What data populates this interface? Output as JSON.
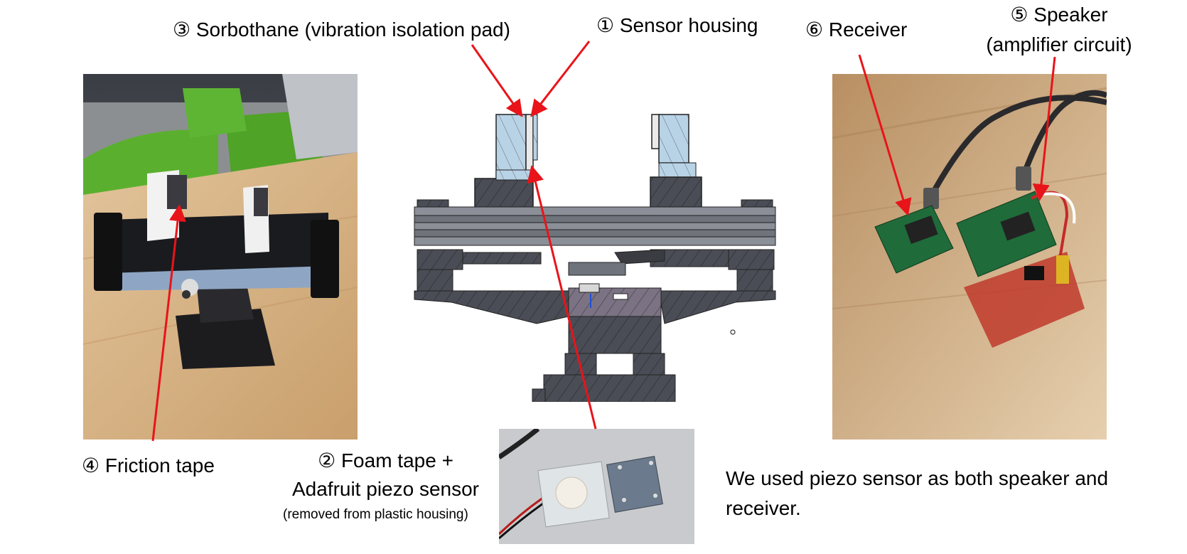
{
  "labels": {
    "sorbothane": "③ Sorbothane (vibration isolation pad)",
    "sensor_housing": "① Sensor housing",
    "receiver": "⑥ Receiver",
    "speaker_line1": "⑤ Speaker",
    "speaker_line2": "(amplifier circuit)",
    "friction_tape": "④ Friction tape",
    "foam_tape_line1": "② Foam tape +",
    "foam_tape_line2": "Adafruit piezo sensor",
    "foam_tape_line3": "(removed from plastic housing)"
  },
  "note": {
    "line1": "We used piezo sensor as both speaker and",
    "line2": "receiver."
  },
  "colors": {
    "arrow": "#e8141a",
    "cad_light": "#b9d3e6",
    "cad_dark": "#4a4d55",
    "cad_mid": "#8a8f98",
    "wood": "#d9b98e",
    "pcb": "#1f6b3a",
    "chair_green": "#5ab02e"
  }
}
